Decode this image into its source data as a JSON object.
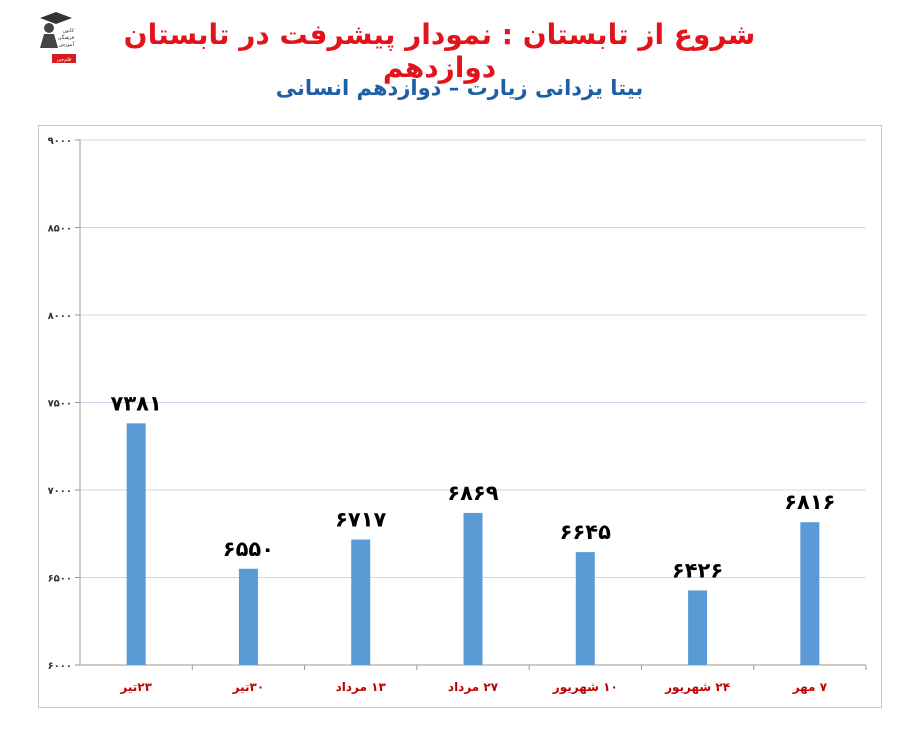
{
  "header": {
    "title": "شروع از تابستان : نمودار پیشرفت در تابستان دوازدهم",
    "subtitle": "بیتا یزدانی زیارت – دوازدهم انسانی",
    "logo_text": [
      "کانون",
      "فرهنگی",
      "آموزش",
      "قلم‌چی"
    ]
  },
  "colors": {
    "title": "#e3131b",
    "subtitle": "#1f5fa8",
    "bar": "#5b9bd5",
    "category_label": "#c00000",
    "value_label": "#000000",
    "gridline": "#c9d9ea"
  },
  "chart_data": {
    "type": "bar",
    "categories": [
      "۲۳تیر",
      "۳۰تیر",
      "۱۳ مرداد",
      "۲۷ مرداد",
      "۱۰ شهریور",
      "۲۴ شهریور",
      "۷ مهر"
    ],
    "values": [
      7381,
      6550,
      6717,
      6869,
      6645,
      6426,
      6816
    ],
    "value_labels": [
      "۷۳۸۱",
      "۶۵۵۰",
      "۶۷۱۷",
      "۶۸۶۹",
      "۶۶۴۵",
      "۶۴۲۶",
      "۶۸۱۶"
    ],
    "ylim": [
      6000,
      9000
    ],
    "yticks": [
      6000,
      6500,
      7000,
      7500,
      8000,
      8500,
      9000
    ],
    "ytick_labels": [
      "۶۰۰۰",
      "۶۵۰۰",
      "۷۰۰۰",
      "۷۵۰۰",
      "۸۰۰۰",
      "۸۵۰۰",
      "۹۰۰۰"
    ],
    "grid": true,
    "legend": "none"
  }
}
